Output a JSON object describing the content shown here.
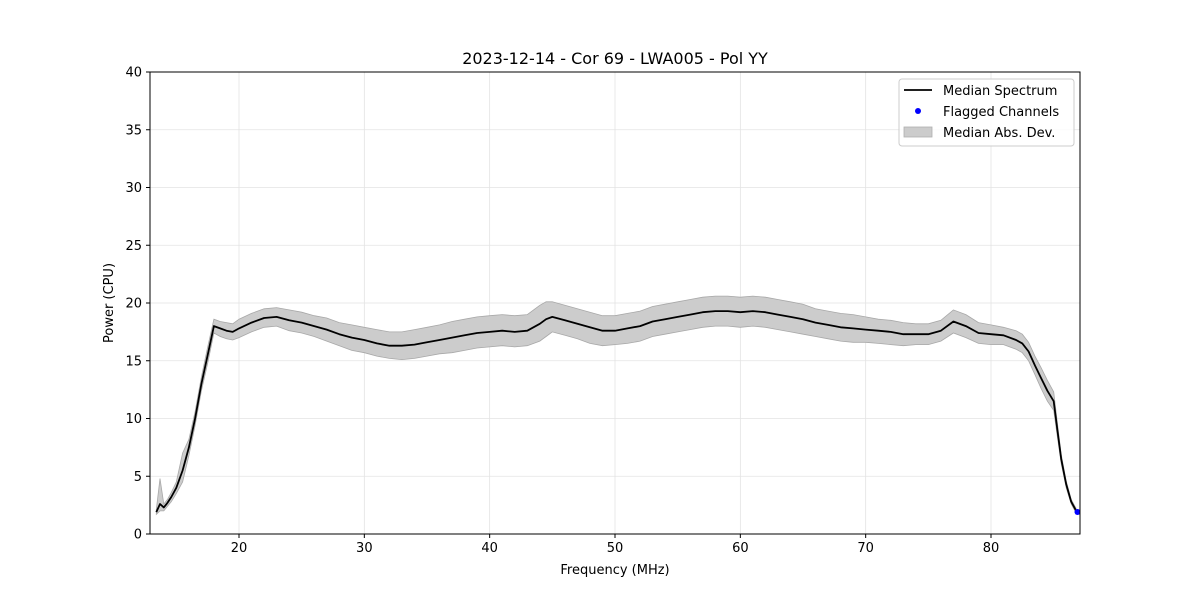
{
  "chart_data": {
    "type": "line",
    "title": "2023-12-14 - Cor 69 - LWA005 - Pol YY",
    "xlabel": "Frequency (MHz)",
    "ylabel": "Power (CPU)",
    "xlim": [
      12.9,
      87.1
    ],
    "ylim": [
      0,
      40
    ],
    "xticks": [
      20,
      30,
      40,
      50,
      60,
      70,
      80
    ],
    "yticks": [
      0,
      5,
      10,
      15,
      20,
      25,
      30,
      35,
      40
    ],
    "grid": true,
    "legend_position": "top-right",
    "legend": [
      {
        "label": "Median Spectrum",
        "kind": "line"
      },
      {
        "label": "Flagged Channels",
        "kind": "marker"
      },
      {
        "label": "Median Abs. Dev.",
        "kind": "patch"
      }
    ],
    "series": [
      {
        "name": "Median Spectrum",
        "color": "#000000",
        "x": [
          13.4,
          13.7,
          14.0,
          14.3,
          14.6,
          15.0,
          15.5,
          16.0,
          16.5,
          17.0,
          17.5,
          18.0,
          18.5,
          19.0,
          19.5,
          20.0,
          21.0,
          22.0,
          23.0,
          24.0,
          25.0,
          26.0,
          27.0,
          28.0,
          29.0,
          30.0,
          31.0,
          32.0,
          33.0,
          34.0,
          35.0,
          36.0,
          37.0,
          38.0,
          39.0,
          40.0,
          41.0,
          42.0,
          43.0,
          44.0,
          44.5,
          45.0,
          46.0,
          47.0,
          48.0,
          49.0,
          50.0,
          51.0,
          52.0,
          53.0,
          54.0,
          55.0,
          56.0,
          57.0,
          58.0,
          59.0,
          60.0,
          61.0,
          62.0,
          63.0,
          64.0,
          65.0,
          66.0,
          67.0,
          68.0,
          69.0,
          70.0,
          71.0,
          72.0,
          73.0,
          74.0,
          75.0,
          76.0,
          77.0,
          78.0,
          79.0,
          80.0,
          81.0,
          82.0,
          82.5,
          83.0,
          83.5,
          84.0,
          84.5,
          85.0,
          85.3,
          85.6,
          86.0,
          86.4,
          86.8
        ],
        "values": [
          1.9,
          2.6,
          2.3,
          2.7,
          3.2,
          4.0,
          5.5,
          7.5,
          10.0,
          13.0,
          15.5,
          18.0,
          17.8,
          17.6,
          17.5,
          17.8,
          18.3,
          18.7,
          18.8,
          18.5,
          18.3,
          18.0,
          17.7,
          17.3,
          17.0,
          16.8,
          16.5,
          16.3,
          16.3,
          16.4,
          16.6,
          16.8,
          17.0,
          17.2,
          17.4,
          17.5,
          17.6,
          17.5,
          17.6,
          18.2,
          18.6,
          18.8,
          18.5,
          18.2,
          17.9,
          17.6,
          17.6,
          17.8,
          18.0,
          18.4,
          18.6,
          18.8,
          19.0,
          19.2,
          19.3,
          19.3,
          19.2,
          19.3,
          19.2,
          19.0,
          18.8,
          18.6,
          18.3,
          18.1,
          17.9,
          17.8,
          17.7,
          17.6,
          17.5,
          17.3,
          17.3,
          17.3,
          17.6,
          18.4,
          18.0,
          17.4,
          17.3,
          17.2,
          16.8,
          16.5,
          15.8,
          14.6,
          13.5,
          12.4,
          11.5,
          9.0,
          6.5,
          4.3,
          2.8,
          2.0
        ]
      },
      {
        "name": "Median Abs. Dev.",
        "color": "#bdbdbd",
        "x": [
          13.4,
          13.7,
          14.0,
          14.3,
          14.6,
          15.0,
          15.5,
          16.0,
          16.5,
          17.0,
          17.5,
          18.0,
          18.5,
          19.0,
          19.5,
          20.0,
          21.0,
          22.0,
          23.0,
          24.0,
          25.0,
          26.0,
          27.0,
          28.0,
          29.0,
          30.0,
          31.0,
          32.0,
          33.0,
          34.0,
          35.0,
          36.0,
          37.0,
          38.0,
          39.0,
          40.0,
          41.0,
          42.0,
          43.0,
          44.0,
          44.5,
          45.0,
          46.0,
          47.0,
          48.0,
          49.0,
          50.0,
          51.0,
          52.0,
          53.0,
          54.0,
          55.0,
          56.0,
          57.0,
          58.0,
          59.0,
          60.0,
          61.0,
          62.0,
          63.0,
          64.0,
          65.0,
          66.0,
          67.0,
          68.0,
          69.0,
          70.0,
          71.0,
          72.0,
          73.0,
          74.0,
          75.0,
          76.0,
          77.0,
          78.0,
          79.0,
          80.0,
          81.0,
          82.0,
          82.5,
          83.0,
          83.5,
          84.0,
          84.5,
          85.0,
          85.3,
          85.6,
          86.0,
          86.4,
          86.8
        ],
        "upper": [
          2.1,
          4.8,
          2.6,
          3.0,
          3.6,
          4.5,
          7.0,
          8.2,
          10.6,
          13.6,
          16.2,
          18.6,
          18.4,
          18.3,
          18.2,
          18.6,
          19.1,
          19.5,
          19.6,
          19.4,
          19.2,
          18.9,
          18.7,
          18.3,
          18.1,
          17.9,
          17.7,
          17.5,
          17.5,
          17.7,
          17.9,
          18.1,
          18.4,
          18.6,
          18.8,
          18.9,
          19.0,
          18.9,
          19.0,
          19.8,
          20.1,
          20.1,
          19.8,
          19.5,
          19.2,
          18.9,
          18.9,
          19.1,
          19.3,
          19.7,
          19.9,
          20.1,
          20.3,
          20.5,
          20.6,
          20.6,
          20.5,
          20.6,
          20.5,
          20.3,
          20.1,
          19.9,
          19.5,
          19.3,
          19.1,
          19.0,
          18.8,
          18.6,
          18.5,
          18.3,
          18.2,
          18.2,
          18.5,
          19.4,
          19.0,
          18.3,
          18.1,
          17.9,
          17.6,
          17.3,
          16.6,
          15.4,
          14.4,
          13.3,
          12.3,
          9.6,
          6.9,
          4.6,
          3.0,
          2.2
        ],
        "lower": [
          1.7,
          2.0,
          2.0,
          2.4,
          2.8,
          3.5,
          4.5,
          6.8,
          9.4,
          12.4,
          14.8,
          17.4,
          17.1,
          16.9,
          16.8,
          17.0,
          17.5,
          17.9,
          18.0,
          17.6,
          17.4,
          17.1,
          16.7,
          16.3,
          15.9,
          15.7,
          15.4,
          15.2,
          15.1,
          15.2,
          15.4,
          15.6,
          15.7,
          15.9,
          16.1,
          16.2,
          16.3,
          16.2,
          16.3,
          16.7,
          17.1,
          17.5,
          17.2,
          16.9,
          16.5,
          16.3,
          16.4,
          16.5,
          16.7,
          17.1,
          17.3,
          17.5,
          17.7,
          17.9,
          18.0,
          18.0,
          17.9,
          18.0,
          17.9,
          17.7,
          17.5,
          17.3,
          17.1,
          16.9,
          16.7,
          16.6,
          16.6,
          16.5,
          16.4,
          16.3,
          16.4,
          16.4,
          16.7,
          17.4,
          17.0,
          16.5,
          16.4,
          16.4,
          16.0,
          15.7,
          15.0,
          13.8,
          12.6,
          11.5,
          10.7,
          8.4,
          6.1,
          4.0,
          2.6,
          1.8
        ]
      },
      {
        "name": "Flagged Channels",
        "color": "#0000ff",
        "x": [
          86.9
        ],
        "values": [
          1.9
        ]
      }
    ]
  }
}
